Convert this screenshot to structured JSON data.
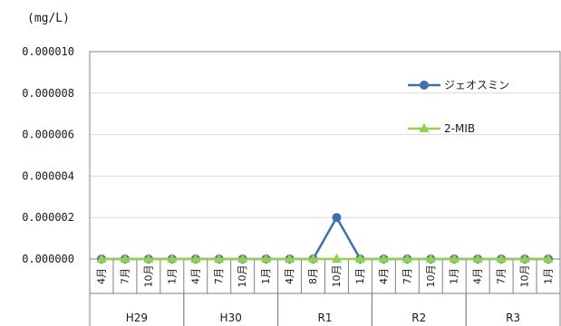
{
  "chart_data": {
    "type": "line",
    "ylabel": "(mg/L)",
    "ylim": [
      0,
      1e-05
    ],
    "y_ticks": [
      "0.000000",
      "0.000002",
      "0.000004",
      "0.000006",
      "0.000008",
      "0.000010"
    ],
    "y_tick_values": [
      0,
      2e-06,
      4e-06,
      6e-06,
      8e-06,
      1e-05
    ],
    "categories": [
      "4月",
      "7月",
      "10月",
      "1月",
      "4月",
      "7月",
      "10月",
      "1月",
      "4月",
      "8月",
      "10月",
      "1月",
      "4月",
      "7月",
      "10月",
      "1月",
      "4月",
      "7月",
      "10月",
      "1月"
    ],
    "groups": [
      {
        "label": "H29",
        "start": 0,
        "count": 4
      },
      {
        "label": "H30",
        "start": 4,
        "count": 4
      },
      {
        "label": "R1",
        "start": 8,
        "count": 4
      },
      {
        "label": "R2",
        "start": 12,
        "count": 4
      },
      {
        "label": "R3",
        "start": 16,
        "count": 4
      }
    ],
    "series": [
      {
        "name": "ジェオスミン",
        "color": "#3f6fb0",
        "marker": "circle",
        "values": [
          0,
          0,
          0,
          0,
          0,
          0,
          0,
          0,
          0,
          0,
          2e-06,
          0,
          0,
          0,
          0,
          0,
          0,
          0,
          0,
          0
        ]
      },
      {
        "name": "2-MIB",
        "color": "#92d050",
        "marker": "triangle",
        "values": [
          0,
          0,
          0,
          0,
          0,
          0,
          0,
          0,
          0,
          0,
          0,
          0,
          0,
          0,
          0,
          0,
          0,
          0,
          0,
          0
        ]
      }
    ],
    "grid": true,
    "legend_position": "right"
  }
}
